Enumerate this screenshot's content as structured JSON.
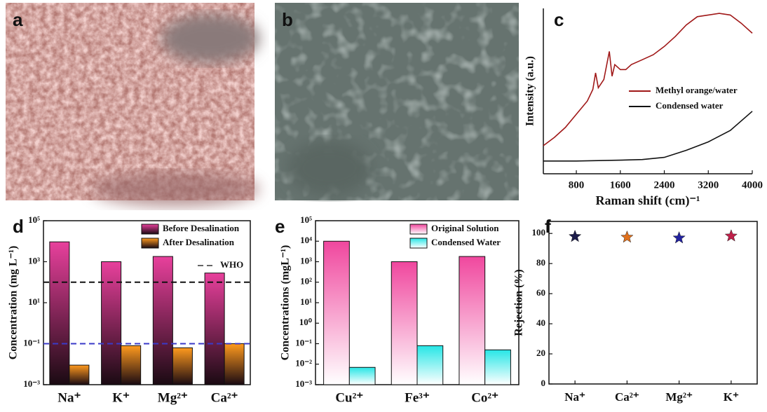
{
  "images": [
    {
      "label": "a"
    },
    {
      "label": "b"
    }
  ],
  "chart_data": [
    {
      "type": "line",
      "label": "c",
      "x_label": "Raman shift (cm)⁻¹",
      "y_label": "Intensity (a.u.)",
      "xlim": [
        200,
        4000
      ],
      "xticks": [
        800,
        1600,
        2400,
        3200,
        4000
      ],
      "ylim": [
        0,
        100
      ],
      "series": [
        {
          "name": "Methyl orange/water",
          "color": "#a01818",
          "x": [
            200,
            400,
            600,
            800,
            1000,
            1100,
            1150,
            1200,
            1300,
            1400,
            1450,
            1500,
            1600,
            1700,
            1800,
            2000,
            2200,
            2400,
            2600,
            2800,
            3000,
            3200,
            3400,
            3600,
            3800,
            4000
          ],
          "values": [
            17,
            22,
            28,
            36,
            44,
            51,
            61,
            52,
            57,
            74,
            59,
            66,
            63,
            63,
            66,
            69,
            72,
            77,
            83,
            90,
            95,
            96,
            97,
            96,
            91,
            85
          ]
        },
        {
          "name": "Condensed water",
          "color": "#111111",
          "x": [
            200,
            800,
            1600,
            2000,
            2400,
            2800,
            3200,
            3600,
            4000
          ],
          "values": [
            7.7,
            7.7,
            8.2,
            8.6,
            9.9,
            14.2,
            19.3,
            26.2,
            37.8
          ]
        }
      ]
    },
    {
      "type": "bar",
      "label": "d",
      "y_label": "Concentration (mg L⁻¹)",
      "log_scale": true,
      "bar_fade": "#1a0a12",
      "categories": [
        "Na⁺",
        "K⁺",
        "Mg²⁺",
        "Ca²⁺"
      ],
      "ylim": [
        0.001,
        100000
      ],
      "yticks": [
        {
          "value": 0.001,
          "label": "10⁻³"
        },
        {
          "value": 0.1,
          "label": "10⁻¹"
        },
        {
          "value": 10,
          "label": "10¹"
        },
        {
          "value": 1000,
          "label": "10³"
        },
        {
          "value": 100000,
          "label": "10⁵"
        }
      ],
      "series": [
        {
          "name": "Before Desalination",
          "color": "#e8409c",
          "values": [
            9300,
            1000,
            1800,
            280
          ]
        },
        {
          "name": "After Desalination",
          "color": "#ff9a1e",
          "values": [
            0.009,
            0.08,
            0.063,
            0.1
          ]
        }
      ],
      "reference_lines": [
        {
          "name": "WHO",
          "value": 100,
          "color": "#111111"
        },
        {
          "value": 0.1,
          "color": "#3a3ac8"
        }
      ]
    },
    {
      "type": "bar",
      "label": "e",
      "y_label": "Concentrations (mgL⁻¹)",
      "log_scale": true,
      "bar_fade": "#ffffff",
      "categories": [
        "Cu²⁺",
        "Fe³⁺",
        "Co²⁺"
      ],
      "ylim": [
        0.001,
        100000
      ],
      "yticks": [
        {
          "value": 0.001,
          "label": "10⁻³"
        },
        {
          "value": 0.01,
          "label": "10⁻²"
        },
        {
          "value": 0.1,
          "label": "10⁻¹"
        },
        {
          "value": 1,
          "label": "10⁰"
        },
        {
          "value": 10,
          "label": "10¹"
        },
        {
          "value": 100,
          "label": "10²"
        },
        {
          "value": 1000,
          "label": "10³"
        },
        {
          "value": 10000,
          "label": "10⁴"
        },
        {
          "value": 100000,
          "label": "10⁵"
        }
      ],
      "series": [
        {
          "name": "Original Solution",
          "color": "#f0479e",
          "values": [
            10000,
            1000,
            1800
          ]
        },
        {
          "name": "Condensed Water",
          "color": "#27e6e6",
          "values": [
            0.007,
            0.08,
            0.05
          ]
        }
      ]
    },
    {
      "type": "scatter",
      "label": "f",
      "y_label": "Rejection (%)",
      "categories": [
        "Na⁺",
        "Ca²⁺",
        "Mg²⁺",
        "K⁺"
      ],
      "colors": [
        "#1c1c4a",
        "#e0701c",
        "#22229e",
        "#c0204a"
      ],
      "values": [
        98,
        97.5,
        97,
        98.3
      ],
      "ylim": [
        0,
        108
      ],
      "yticks": [
        0,
        20,
        40,
        60,
        80,
        100
      ]
    }
  ]
}
